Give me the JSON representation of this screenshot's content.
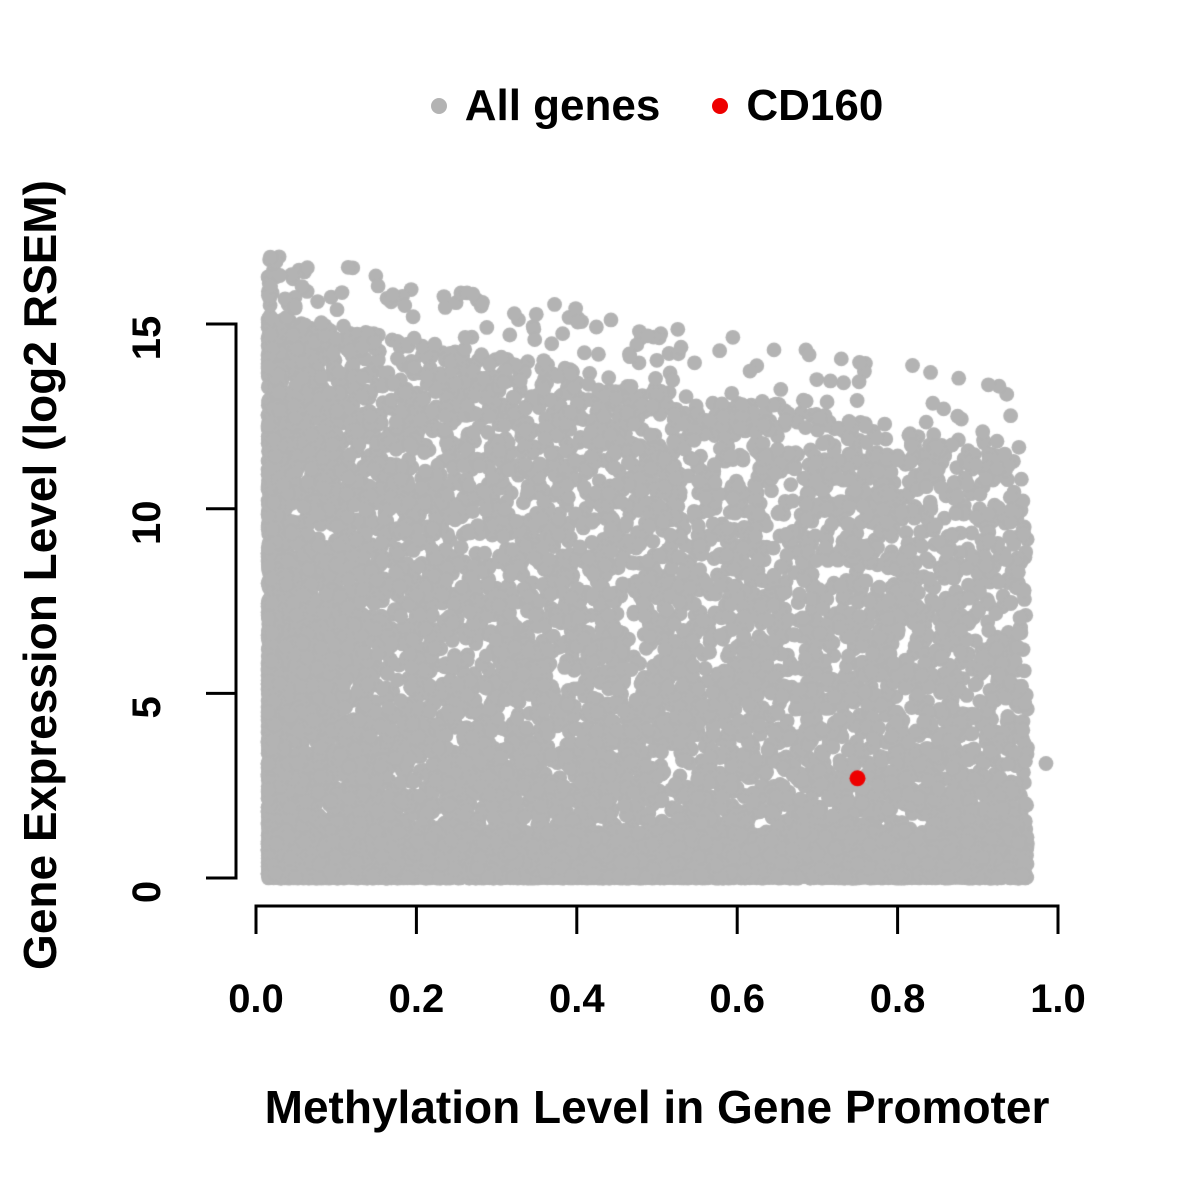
{
  "colors": {
    "background": "#ffffff",
    "text": "#000000",
    "axis": "#000000",
    "all_genes": "#b3b3b3",
    "cd160": "#ee0000"
  },
  "chart_data": {
    "type": "scatter",
    "title": "",
    "xlabel": "Methylation Level in Gene Promoter",
    "ylabel": "Gene Expression Level (log2 RSEM)",
    "grid": false,
    "axes": {
      "x": {
        "min": 0,
        "max": 1,
        "ticks": [
          0,
          0.2,
          0.4,
          0.6,
          0.8,
          1
        ],
        "tick_labels": [
          "0.0",
          "0.2",
          "0.4",
          "0.6",
          "0.8",
          "1.0"
        ]
      },
      "y": {
        "min": 0,
        "max": 17,
        "ticks": [
          0,
          5,
          10,
          15
        ],
        "tick_labels": [
          "0",
          "5",
          "10",
          "15"
        ]
      }
    },
    "legend": {
      "position": "top-center",
      "items": [
        {
          "label": "All genes",
          "color": "#b3b3b3"
        },
        {
          "label": "CD160",
          "color": "#ee0000"
        }
      ]
    },
    "series": [
      {
        "name": "All genes",
        "type": "dense-cloud",
        "color": "#b3b3b3",
        "marker_radius_px": 7.4,
        "observed_extent": {
          "x": [
            0.02,
            0.965
          ],
          "y": [
            0,
            16.8
          ]
        },
        "trend": "upper envelope of expression decreases with increasing promoter methylation; dense strip near y=0 spans all methylation levels",
        "point_cloud_model": {
          "seed": 1234,
          "n_base": 8500,
          "n_bottom_strip": 2600,
          "n_upper_speckle": 140,
          "x_min": 0.015,
          "x_max": 0.962,
          "x_left_bias_fraction": 0.58,
          "x_left_bias_power": 2.1,
          "envelope_intercept": 15.3,
          "envelope_slope": -3.8,
          "y_fill_power": 1.35,
          "bottom_strip_max_y": 1.3,
          "bottom_strip_power": 2.2,
          "upper_speckle_extra": 1.7,
          "y_cap": 16.85
        },
        "isolated_points": [
          {
            "x": 0.985,
            "y": 3.1
          }
        ]
      },
      {
        "name": "CD160",
        "type": "highlight-point",
        "color": "#ee0000",
        "marker_radius_px": 8,
        "points": [
          {
            "x": 0.75,
            "y": 2.7
          }
        ]
      }
    ]
  }
}
